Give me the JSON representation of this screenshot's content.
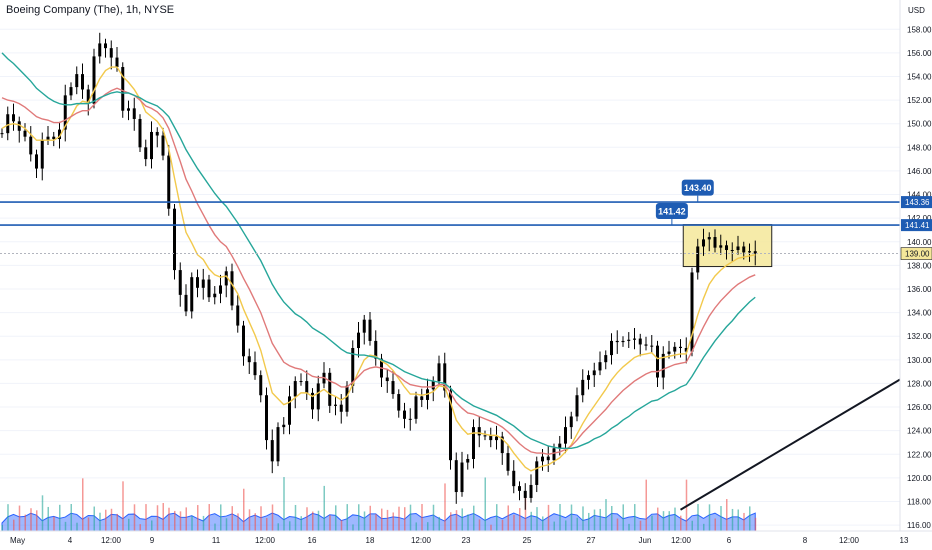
{
  "chart_data": {
    "type": "candlestick",
    "title": "Boeing Company (The), 1h, NYSE",
    "currency": "USD",
    "y_axis": {
      "ticks": [
        116,
        118,
        120,
        122,
        124,
        126,
        128,
        130,
        132,
        134,
        136,
        138,
        140,
        142,
        144,
        146,
        148,
        150,
        152,
        154,
        156,
        158
      ],
      "tick_labels": [
        "116.00",
        "118.00",
        "120.00",
        "122.00",
        "124.00",
        "126.00",
        "128.00",
        "130.00",
        "132.00",
        "134.00",
        "136.00",
        "138.00",
        "140.00",
        "142.00",
        "144.00",
        "146.00",
        "148.00",
        "150.00",
        "152.00",
        "154.00",
        "156.00",
        "158.00"
      ],
      "ylim": [
        115.5,
        159.8
      ]
    },
    "x_axis": {
      "labels": [
        "May",
        "4",
        "12:00",
        "9",
        "11",
        "12:00",
        "16",
        "18",
        "12:00",
        "23",
        "25",
        "27",
        "Jun",
        "12:00",
        "6",
        "8",
        "12:00",
        "13"
      ]
    },
    "horizontal_lines": [
      {
        "value": 143.36,
        "label": "143.36",
        "color": "#1e5cb3"
      },
      {
        "value": 141.41,
        "label": "141.41",
        "color": "#1e5cb3"
      }
    ],
    "last_price": {
      "value": 139.0,
      "label": "139.00"
    },
    "callouts": [
      {
        "label": "141.42",
        "value": 141.42
      },
      {
        "label": "143.40",
        "value": 143.4
      }
    ],
    "consolidation_box": {
      "low": 137.9,
      "high": 141.45,
      "color": "#f5e79a"
    },
    "trendline": {
      "from": {
        "bar": 118,
        "price": 117.3
      },
      "to": {
        "bar": 200,
        "price": 141.0
      }
    },
    "series": [
      {
        "role": "price",
        "values": [
          149.2,
          150.8,
          150.2,
          149.4,
          148.9,
          147.4,
          146.2,
          148.6,
          148.9,
          148.7,
          149.5,
          152.4,
          153.1,
          154.2,
          152.9,
          151.7,
          155.7,
          156.8,
          156.4,
          155.6,
          154.8,
          151.1,
          151.3,
          150.4,
          148.0,
          147.0,
          149.3,
          149.0,
          147.3,
          142.8,
          137.6,
          135.5,
          134.1,
          137.0,
          136.1,
          136.8,
          135.3,
          135.6,
          136.3,
          137.5,
          134.6,
          132.9,
          130.3,
          129.8,
          128.7,
          127.0,
          123.2,
          121.4,
          124.3,
          124.5,
          126.9,
          128.2,
          128.2,
          127.2,
          125.8,
          128.0,
          128.9,
          126.1,
          126.2,
          125.6,
          127.8,
          131.0,
          132.3,
          133.4,
          131.6,
          130.1,
          128.5,
          128.2,
          127.1,
          125.7,
          125.0,
          125.0,
          126.9,
          126.6,
          127.5,
          128.2,
          129.7,
          127.4,
          121.5,
          118.8,
          121.3,
          121.6,
          124.3,
          123.6,
          123.6,
          123.2,
          123.5,
          122.1,
          120.6,
          119.3,
          118.9,
          118.3,
          119.4,
          121.4,
          121.8,
          121.5,
          122.5,
          122.9,
          124.3,
          125.2,
          127.0,
          128.3,
          128.7,
          129.1,
          129.8,
          130.4,
          131.6,
          131.5,
          131.6,
          131.7,
          131.8,
          131.3,
          131.2,
          131.2,
          128.5,
          130.5,
          130.7,
          131.1,
          131.0,
          130.7,
          137.4,
          139.6,
          140.2,
          140.4,
          139.5,
          139.7,
          139.3,
          139.3,
          139.6,
          139.1,
          139.2,
          139.0
        ]
      },
      {
        "role": "fast-ma",
        "color": "#f2c94c",
        "values": [
          149.6,
          149.9,
          150.0,
          149.9,
          149.6,
          149.1,
          148.6,
          148.6,
          148.6,
          148.6,
          148.9,
          149.8,
          150.6,
          151.5,
          151.9,
          151.8,
          152.8,
          153.8,
          154.5,
          154.8,
          154.8,
          154.0,
          153.5,
          152.9,
          152.1,
          151.0,
          150.6,
          150.2,
          149.5,
          147.9,
          145.4,
          143.0,
          140.8,
          139.9,
          138.9,
          138.5,
          137.7,
          137.2,
          137.0,
          137.1,
          136.4,
          135.6,
          134.3,
          133.2,
          132.1,
          130.8,
          129.0,
          127.2,
          126.7,
          126.2,
          126.4,
          126.8,
          127.2,
          127.2,
          126.9,
          127.2,
          127.5,
          127.1,
          126.9,
          126.6,
          126.9,
          127.9,
          129.0,
          130.0,
          130.4,
          130.3,
          129.9,
          129.6,
          129.1,
          128.4,
          127.7,
          127.1,
          127.1,
          127.0,
          127.1,
          127.3,
          127.8,
          127.7,
          126.4,
          124.9,
          124.2,
          123.7,
          123.8,
          123.8,
          123.7,
          123.6,
          123.6,
          123.3,
          122.8,
          122.1,
          121.5,
          120.9,
          120.6,
          120.8,
          121.0,
          121.1,
          121.4,
          121.7,
          122.2,
          122.8,
          123.7,
          124.6,
          125.4,
          126.1,
          126.8,
          127.5,
          128.3,
          128.9,
          129.4,
          129.8,
          130.2,
          130.4,
          130.5,
          130.6,
          130.1,
          130.2,
          130.3,
          130.4,
          130.5,
          130.5,
          132.1,
          133.8,
          135.2,
          136.4,
          137.1,
          137.6,
          138.0,
          138.3,
          138.6,
          138.7,
          138.8,
          138.9
        ]
      },
      {
        "role": "mid-ma",
        "color": "#e07a7a",
        "values": [
          152.2,
          152.0,
          151.9,
          151.7,
          151.4,
          151.0,
          150.6,
          150.4,
          150.3,
          150.1,
          150.1,
          150.3,
          150.6,
          150.9,
          151.1,
          151.1,
          151.6,
          152.1,
          152.5,
          152.8,
          153.0,
          152.8,
          152.6,
          152.4,
          152.0,
          151.5,
          151.3,
          151.0,
          150.5,
          149.6,
          148.2,
          146.8,
          145.3,
          144.3,
          143.2,
          142.3,
          141.4,
          140.6,
          140.0,
          139.6,
          138.8,
          137.9,
          136.9,
          136.0,
          135.0,
          134.0,
          132.7,
          131.4,
          130.6,
          129.8,
          129.5,
          129.3,
          129.2,
          128.9,
          128.6,
          128.5,
          128.5,
          128.2,
          128.0,
          127.7,
          127.7,
          128.1,
          128.6,
          129.1,
          129.3,
          129.4,
          129.3,
          129.2,
          128.9,
          128.6,
          128.2,
          127.9,
          127.8,
          127.7,
          127.7,
          127.7,
          127.9,
          127.9,
          127.2,
          126.4,
          125.9,
          125.5,
          125.4,
          125.2,
          125.0,
          124.8,
          124.6,
          124.3,
          123.9,
          123.4,
          122.9,
          122.5,
          122.2,
          122.1,
          122.1,
          122.0,
          122.1,
          122.2,
          122.4,
          122.7,
          123.2,
          123.8,
          124.3,
          124.8,
          125.3,
          125.8,
          126.4,
          126.9,
          127.4,
          127.8,
          128.2,
          128.5,
          128.8,
          129.0,
          129.0,
          129.2,
          129.4,
          129.6,
          129.7,
          129.8,
          130.7,
          131.8,
          132.8,
          133.7,
          134.4,
          135.0,
          135.5,
          136.0,
          136.4,
          136.7,
          137.0,
          137.2
        ]
      },
      {
        "role": "slow-ma",
        "color": "#26a69a",
        "values": [
          156.0,
          155.5,
          155.1,
          154.6,
          154.1,
          153.6,
          153.0,
          152.6,
          152.2,
          151.9,
          151.7,
          151.6,
          151.6,
          151.7,
          151.7,
          151.7,
          151.9,
          152.2,
          152.4,
          152.6,
          152.7,
          152.6,
          152.6,
          152.4,
          152.2,
          151.9,
          151.7,
          151.5,
          151.1,
          150.6,
          149.7,
          148.8,
          147.8,
          147.0,
          146.2,
          145.5,
          144.8,
          144.1,
          143.5,
          143.0,
          142.3,
          141.6,
          140.8,
          140.0,
          139.2,
          138.4,
          137.4,
          136.4,
          135.6,
          134.9,
          134.4,
          133.9,
          133.6,
          133.2,
          132.7,
          132.4,
          132.1,
          131.7,
          131.3,
          130.9,
          130.6,
          130.5,
          130.4,
          130.4,
          130.3,
          130.2,
          130.0,
          129.8,
          129.6,
          129.3,
          129.0,
          128.8,
          128.6,
          128.4,
          128.3,
          128.2,
          128.1,
          128.0,
          127.6,
          127.1,
          126.7,
          126.4,
          126.1,
          125.9,
          125.7,
          125.5,
          125.3,
          125.0,
          124.7,
          124.4,
          124.0,
          123.6,
          123.3,
          123.1,
          122.9,
          122.7,
          122.6,
          122.5,
          122.5,
          122.5,
          122.6,
          122.8,
          123.0,
          123.3,
          123.5,
          123.8,
          124.2,
          124.5,
          124.9,
          125.2,
          125.6,
          125.9,
          126.2,
          126.5,
          126.6,
          126.9,
          127.2,
          127.4,
          127.7,
          127.9,
          128.6,
          129.4,
          130.2,
          130.9,
          131.6,
          132.2,
          132.8,
          133.3,
          133.9,
          134.4,
          134.9,
          135.3
        ]
      }
    ]
  }
}
